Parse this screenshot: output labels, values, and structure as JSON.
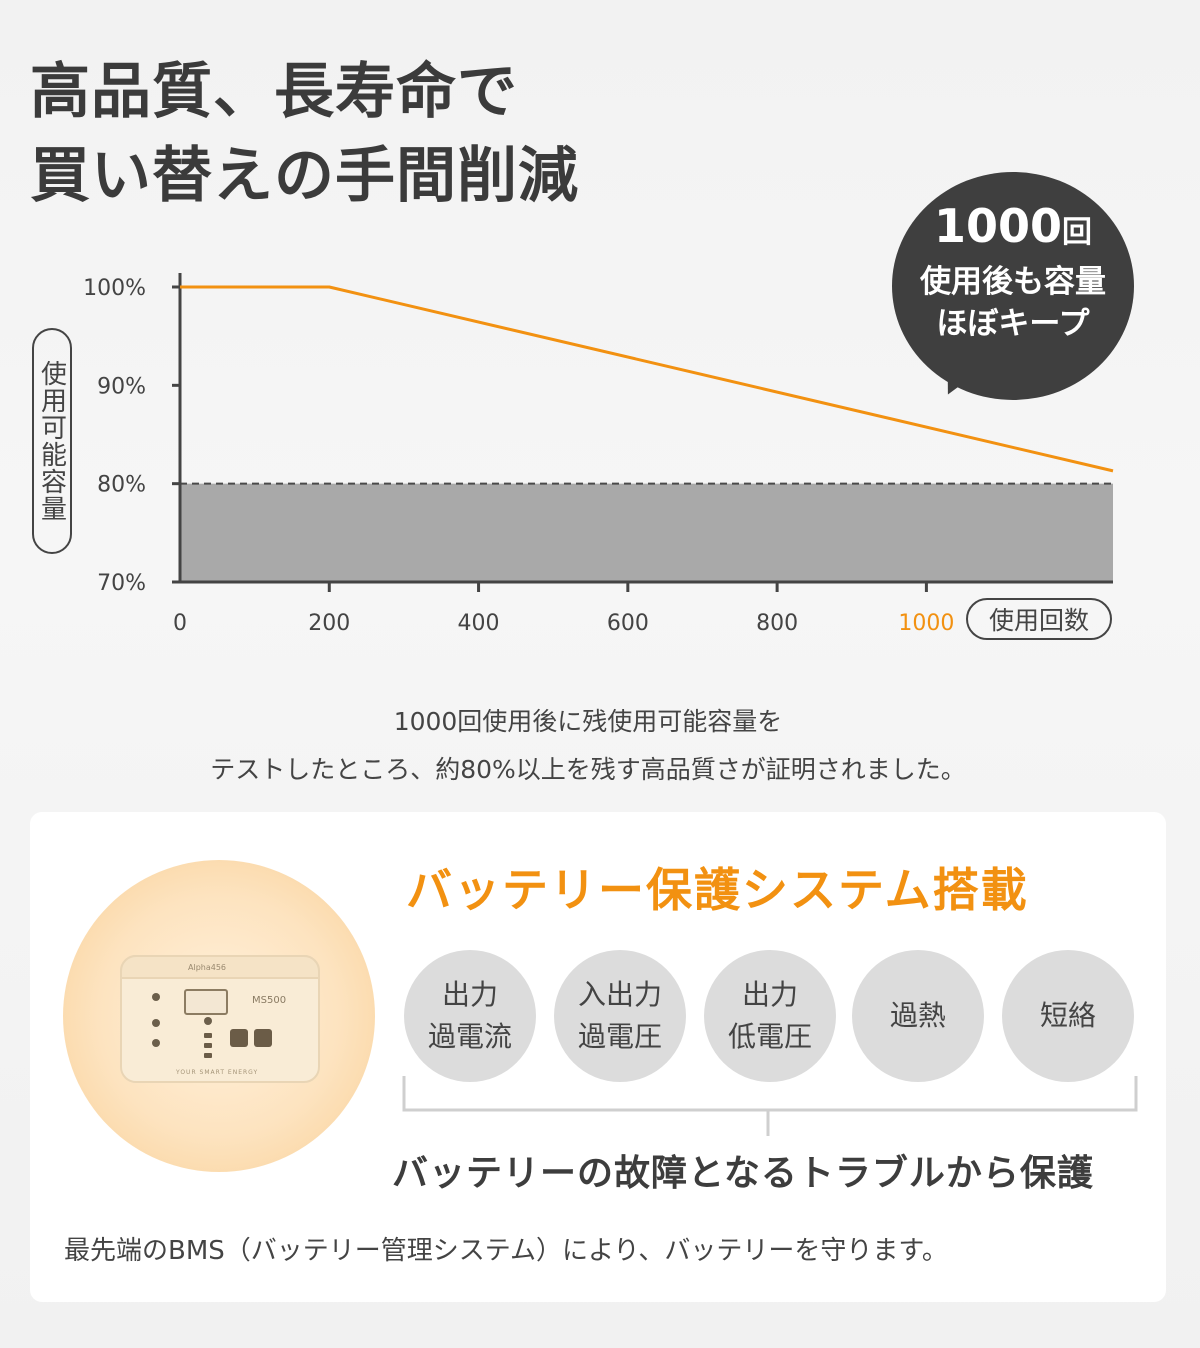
{
  "headline": {
    "line1": "高品質、長寿命で",
    "line2": "買い替えの手間削減"
  },
  "callout": {
    "count_number": "1000",
    "count_unit": "回",
    "line2": "使用後も容量",
    "line3": "ほぼキープ"
  },
  "chart_data": {
    "type": "line",
    "ylabel": "使用可能容量",
    "xlabel": "使用回数",
    "x_ticks": [
      "0",
      "200",
      "400",
      "600",
      "800",
      "1000"
    ],
    "y_ticks": [
      "100%",
      "90%",
      "80%",
      "70%"
    ],
    "xlim": [
      0,
      1250
    ],
    "ylim": [
      70,
      100
    ],
    "threshold": 80,
    "highlight_tick": "1000",
    "series": [
      {
        "x": [
          0,
          200,
          1250
        ],
        "y": [
          100,
          100,
          81.3
        ]
      }
    ],
    "colors": {
      "line": "#f29111",
      "highlight": "#f29111",
      "shaded": "#a9a9a9",
      "axis": "#444444"
    }
  },
  "description": {
    "line1": "1000回使用後に残使用可能容量を",
    "line2": "テストしたところ、約80%以上を残す高品質さが証明されました。"
  },
  "bms": {
    "title": "バッテリー保護システム搭載",
    "features": [
      {
        "line1": "出力",
        "line2": "過電流"
      },
      {
        "line1": "入出力",
        "line2": "過電圧"
      },
      {
        "line1": "出力",
        "line2": "低電圧"
      },
      {
        "line1": "過熱",
        "line2": ""
      },
      {
        "line1": "短絡",
        "line2": ""
      }
    ],
    "summary": "バッテリーの故障となるトラブルから保護",
    "footnote": "最先端のBMS（バッテリー管理システム）により、バッテリーを守ります。"
  },
  "product": {
    "brand": "Alpha456",
    "model": "MS500",
    "tagline": "YOUR SMART ENERGY"
  }
}
